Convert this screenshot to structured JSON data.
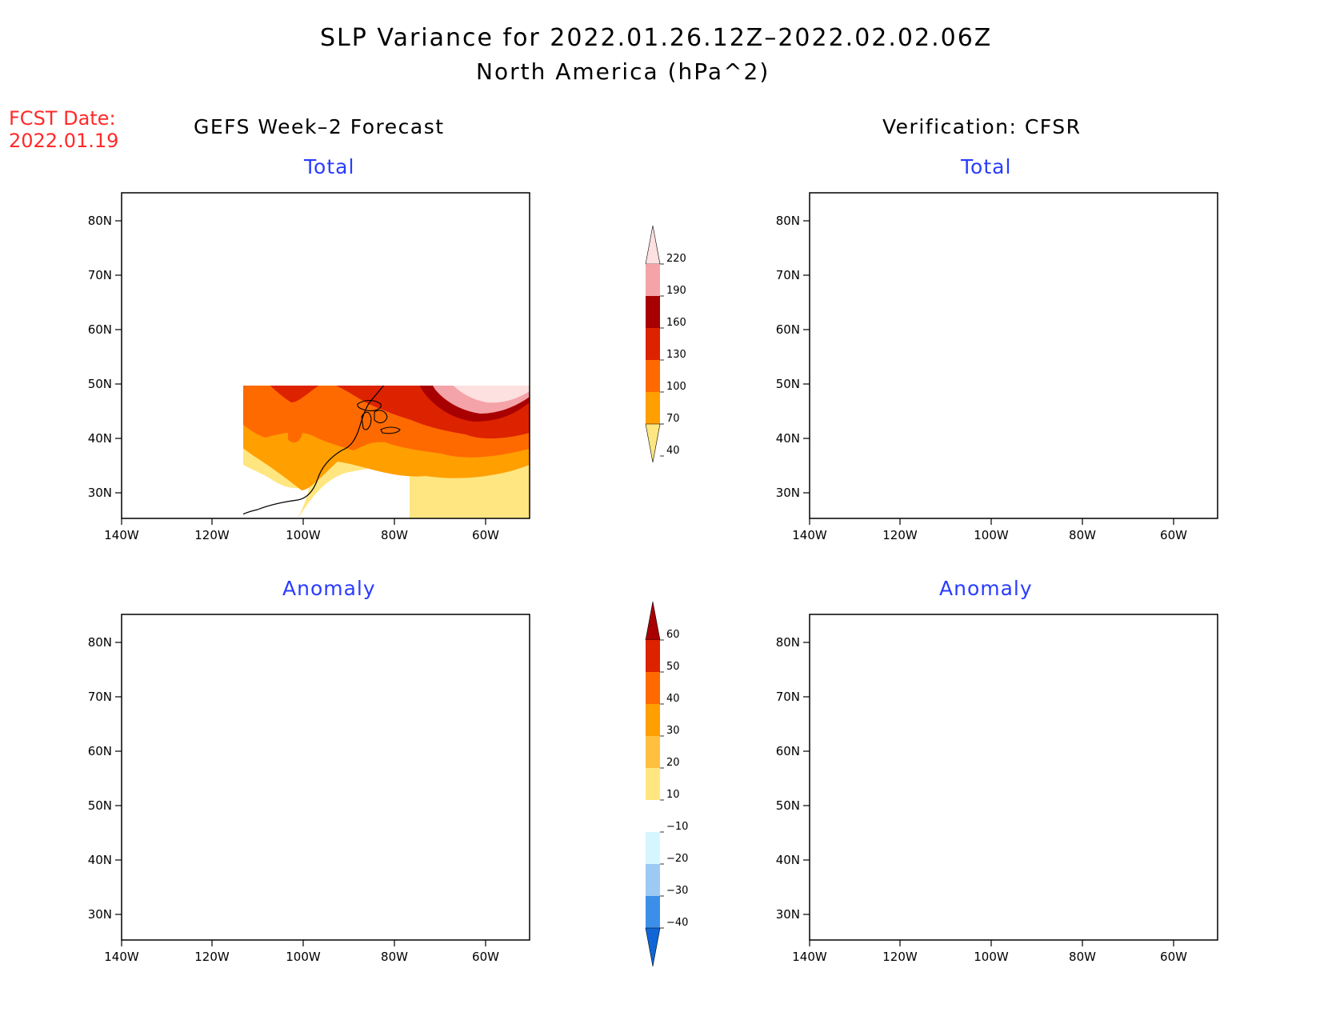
{
  "header": {
    "title_line1": "SLP Variance for 2022.01.26.12Z–2022.02.02.06Z",
    "title_line2": "North America (hPa^2)",
    "fcst_label": "FCST Date:",
    "fcst_date": "2022.01.19"
  },
  "columns": {
    "left": "GEFS Week–2 Forecast",
    "right": "Verification: CFSR"
  },
  "panels": {
    "top_left": "Total",
    "top_right": "Total",
    "bottom_left": "Anomaly",
    "bottom_right": "Anomaly"
  },
  "axes": {
    "lat_ticks": [
      "80N",
      "70N",
      "60N",
      "50N",
      "40N",
      "30N"
    ],
    "lon_ticks": [
      "140W",
      "120W",
      "100W",
      "80W",
      "60W"
    ]
  },
  "colorbar_total": {
    "levels": [
      "220",
      "190",
      "160",
      "130",
      "100",
      "70",
      "40"
    ],
    "colors": [
      "#fde0e0",
      "#f4a3a8",
      "#a80000",
      "#dd2200",
      "#ff6a00",
      "#ff9f00",
      "#ffe680"
    ]
  },
  "colorbar_anomaly": {
    "levels": [
      "60",
      "50",
      "40",
      "30",
      "20",
      "10",
      "−10",
      "−20",
      "−30",
      "−40"
    ],
    "colors": [
      "#a80000",
      "#dd2200",
      "#ff6a00",
      "#ff9f00",
      "#ffc040",
      "#ffe680",
      "#ffffff",
      "#d6f6ff",
      "#9ccaf5",
      "#3c8fe8",
      "#1066d6"
    ]
  }
}
